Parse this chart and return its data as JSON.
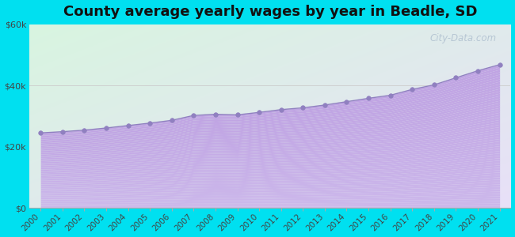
{
  "title": "County average yearly wages by year in Beadle, SD",
  "years": [
    2000,
    2001,
    2002,
    2003,
    2004,
    2005,
    2006,
    2007,
    2008,
    2009,
    2010,
    2011,
    2012,
    2013,
    2014,
    2015,
    2016,
    2017,
    2018,
    2019,
    2020,
    2021
  ],
  "wages": [
    24500,
    24900,
    25400,
    26100,
    26900,
    27700,
    28600,
    30200,
    30600,
    30400,
    31200,
    32100,
    32700,
    33600,
    34700,
    35800,
    36800,
    38700,
    40200,
    42500,
    44800,
    46800
  ],
  "ylim": [
    0,
    60000
  ],
  "yticks": [
    0,
    20000,
    40000,
    60000
  ],
  "ytick_labels": [
    "$0",
    "$20k",
    "$40k",
    "$60k"
  ],
  "fill_color": "#c8b4e8",
  "marker_color": "#9080c0",
  "bg_outer": "#00e0f0",
  "watermark": "City-Data.com",
  "title_fontsize": 13,
  "tick_fontsize": 8.0,
  "bg_grad_top_left": "#d8f5e0",
  "bg_grad_bottom_right": "#e8e0f8",
  "fill_grad_top": "#c8b8e8",
  "fill_grad_bottom": "#c0a8e0"
}
